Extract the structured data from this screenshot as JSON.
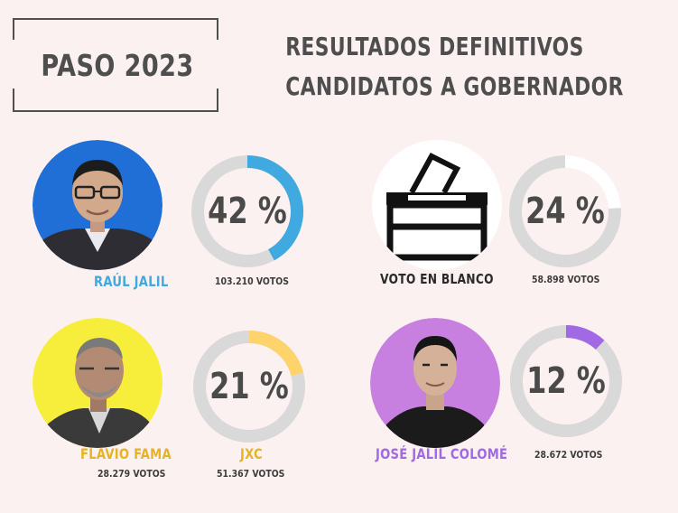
{
  "header": {
    "paso": "PASO 2023",
    "title_line1": "RESULTADOS DEFINITIVOS",
    "title_line2": "CANDIDATOS A GOBERNADOR"
  },
  "chart_data": {
    "type": "pie",
    "categories": [
      "RAÚL JALIL",
      "VOTO EN BLANCO",
      "JXC",
      "JOSÉ JALIL COLOMÉ"
    ],
    "values": [
      42,
      24,
      21,
      12
    ],
    "unit": "%",
    "series": [
      {
        "name": "RAÚL JALIL",
        "value": 42,
        "label": "42 %",
        "votes_text": "103.210 VOTOS",
        "color": "#3fa9e0"
      },
      {
        "name": "VOTO EN BLANCO",
        "value": 24,
        "label": "24 %",
        "votes_text": "58.898 VOTOS",
        "color": "#ffffff"
      },
      {
        "name": "JXC",
        "value": 21,
        "label": "21 %",
        "votes_text": "51.367 VOTOS",
        "color": "#ffd36b"
      },
      {
        "name": "JOSÉ JALIL COLOMÉ",
        "value": 12,
        "label": "12 %",
        "votes_text": "28.672 VOTOS",
        "color": "#a169e3"
      }
    ],
    "extra_labels": {
      "flavio_name": "FLAVIO FAMA",
      "flavio_votes": "28.279 VOTOS"
    }
  },
  "colors": {
    "background": "#fcf1f1",
    "ring_track": "#d9d9d9",
    "raul_name": "#3fa9e0",
    "flavio_name": "#e6b422",
    "jxc_name": "#e6b422",
    "colome_name": "#a169e3",
    "blanco_name": "#2a2a2a",
    "raul_circle": "#1f6fd6",
    "flavio_circle": "#f6ee3a",
    "colome_circle": "#c77fe0"
  },
  "icons": {
    "ballot_box": "ballot-box-icon"
  }
}
